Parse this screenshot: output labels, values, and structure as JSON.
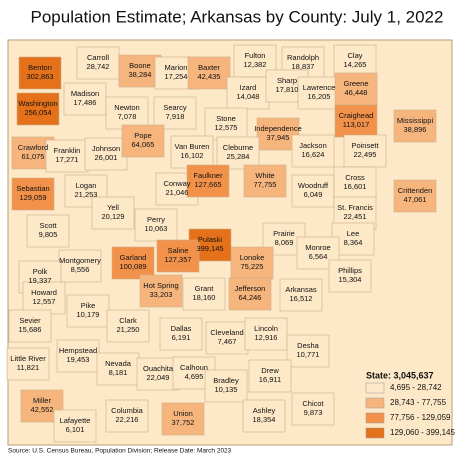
{
  "title": "Population Estimate; Arkansas by County: July 1, 2022",
  "state_total": "State: 3,045,637",
  "source": "Source: U.S. Census Bureau, Population Division; Release Date: March 2023",
  "legend": [
    {
      "label": "4,695 - 28,742",
      "min": 4695,
      "max": 28742,
      "color": "#fde8c8"
    },
    {
      "label": "28,743 - 77,755",
      "min": 28743,
      "max": 77755,
      "color": "#f7b57e"
    },
    {
      "label": "77,756 - 129,059",
      "min": 77756,
      "max": 129059,
      "color": "#f2924a"
    },
    {
      "label": "129,060 - 399,145",
      "min": 129060,
      "max": 399145,
      "color": "#e5721a"
    }
  ],
  "counties": [
    {
      "name": "Benton",
      "value": 302863,
      "label": "302,863"
    },
    {
      "name": "Carroll",
      "value": 28742,
      "label": "28,742"
    },
    {
      "name": "Boone",
      "value": 38284,
      "label": "38,284"
    },
    {
      "name": "Marion",
      "value": 17254,
      "label": "17,254"
    },
    {
      "name": "Baxter",
      "value": 42435,
      "label": "42,435"
    },
    {
      "name": "Fulton",
      "value": 12382,
      "label": "12,382"
    },
    {
      "name": "Randolph",
      "value": 18837,
      "label": "18,837"
    },
    {
      "name": "Clay",
      "value": 14265,
      "label": "14,265"
    },
    {
      "name": "Washington",
      "value": 256054,
      "label": "256,054"
    },
    {
      "name": "Madison",
      "value": 17486,
      "label": "17,486"
    },
    {
      "name": "Newton",
      "value": 7078,
      "label": "7,078"
    },
    {
      "name": "Searcy",
      "value": 7918,
      "label": "7,918"
    },
    {
      "name": "Izard",
      "value": 14048,
      "label": "14,048"
    },
    {
      "name": "Sharp",
      "value": 17810,
      "label": "17,810"
    },
    {
      "name": "Lawrence",
      "value": 16205,
      "label": "16,205"
    },
    {
      "name": "Greene",
      "value": 46448,
      "label": "46,448"
    },
    {
      "name": "Stone",
      "value": 12575,
      "label": "12,575"
    },
    {
      "name": "Independence",
      "value": 37945,
      "label": "37,945"
    },
    {
      "name": "Jackson",
      "value": 16624,
      "label": "16,624"
    },
    {
      "name": "Craighead",
      "value": 113017,
      "label": "113,017"
    },
    {
      "name": "Mississippi",
      "value": 38896,
      "label": "38,896"
    },
    {
      "name": "Crawford",
      "value": 61075,
      "label": "61,075"
    },
    {
      "name": "Franklin",
      "value": 17271,
      "label": "17,271"
    },
    {
      "name": "Johnson",
      "value": 26001,
      "label": "26,001"
    },
    {
      "name": "Pope",
      "value": 64065,
      "label": "64,065"
    },
    {
      "name": "Van Buren",
      "value": 16102,
      "label": "16,102"
    },
    {
      "name": "Cleburne",
      "value": 25284,
      "label": "25,284"
    },
    {
      "name": "Poinsett",
      "value": 22495,
      "label": "22,495"
    },
    {
      "name": "Sebastian",
      "value": 129059,
      "label": "129,059"
    },
    {
      "name": "Logan",
      "value": 21253,
      "label": "21,253"
    },
    {
      "name": "Conway",
      "value": 21046,
      "label": "21,046"
    },
    {
      "name": "Faulkner",
      "value": 127665,
      "label": "127,665"
    },
    {
      "name": "White",
      "value": 77755,
      "label": "77,755"
    },
    {
      "name": "Woodruff",
      "value": 6049,
      "label": "6,049"
    },
    {
      "name": "Cross",
      "value": 16601,
      "label": "16,601"
    },
    {
      "name": "Crittenden",
      "value": 47061,
      "label": "47,061"
    },
    {
      "name": "Yell",
      "value": 20129,
      "label": "20,129"
    },
    {
      "name": "Perry",
      "value": 10063,
      "label": "10,063"
    },
    {
      "name": "St. Francis",
      "value": 22451,
      "label": "22,451"
    },
    {
      "name": "Scott",
      "value": 9805,
      "label": "9,805"
    },
    {
      "name": "Prairie",
      "value": 8069,
      "label": "8,069"
    },
    {
      "name": "Lonoke",
      "value": 75225,
      "label": "75,225"
    },
    {
      "name": "Lee",
      "value": 8364,
      "label": "8,364"
    },
    {
      "name": "Pulaski",
      "value": 399145,
      "label": "399,145"
    },
    {
      "name": "Saline",
      "value": 127357,
      "label": "127,357"
    },
    {
      "name": "Garland",
      "value": 100089,
      "label": "100,089"
    },
    {
      "name": "Montgomery",
      "value": 8556,
      "label": "8,556"
    },
    {
      "name": "Monroe",
      "value": 6564,
      "label": "6,564"
    },
    {
      "name": "Polk",
      "value": 19337,
      "label": "19,337"
    },
    {
      "name": "Phillips",
      "value": 15304,
      "label": "15,304"
    },
    {
      "name": "Hot Spring",
      "value": 33203,
      "label": "33,203"
    },
    {
      "name": "Grant",
      "value": 18160,
      "label": "18,160"
    },
    {
      "name": "Jefferson",
      "value": 64246,
      "label": "64,246"
    },
    {
      "name": "Arkansas",
      "value": 16512,
      "label": "16,512"
    },
    {
      "name": "Howard",
      "value": 12557,
      "label": "12,557"
    },
    {
      "name": "Pike",
      "value": 10179,
      "label": "10,179"
    },
    {
      "name": "Sevier",
      "value": 15686,
      "label": "15,686"
    },
    {
      "name": "Clark",
      "value": 21250,
      "label": "21,250"
    },
    {
      "name": "Dallas",
      "value": 6191,
      "label": "6,191"
    },
    {
      "name": "Cleveland",
      "value": 7467,
      "label": "7,467"
    },
    {
      "name": "Lincoln",
      "value": 12916,
      "label": "12,916"
    },
    {
      "name": "Desha",
      "value": 10771,
      "label": "10,771"
    },
    {
      "name": "Little River",
      "value": 11821,
      "label": "11,821"
    },
    {
      "name": "Hempstead",
      "value": 19453,
      "label": "19,453"
    },
    {
      "name": "Nevada",
      "value": 8181,
      "label": "8,181"
    },
    {
      "name": "Ouachita",
      "value": 22049,
      "label": "22,049"
    },
    {
      "name": "Calhoun",
      "value": 4695,
      "label": "4,695"
    },
    {
      "name": "Bradley",
      "value": 10135,
      "label": "10,135"
    },
    {
      "name": "Drew",
      "value": 16911,
      "label": "16,911"
    },
    {
      "name": "Miller",
      "value": 42552,
      "label": "42,552"
    },
    {
      "name": "Lafayette",
      "value": 6101,
      "label": "6,101"
    },
    {
      "name": "Columbia",
      "value": 22216,
      "label": "22,216"
    },
    {
      "name": "Union",
      "value": 37752,
      "label": "37,752"
    },
    {
      "name": "Ashley",
      "value": 18354,
      "label": "18,354"
    },
    {
      "name": "Chicot",
      "value": 9873,
      "label": "9,873"
    }
  ]
}
